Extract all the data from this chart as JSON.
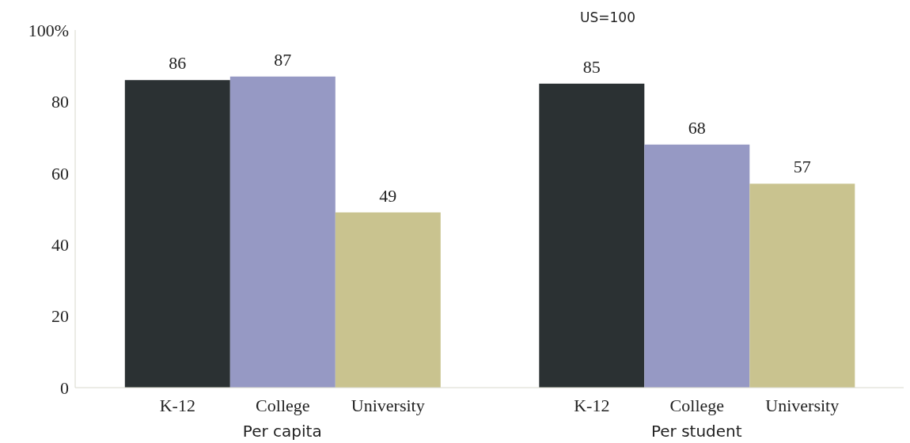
{
  "chart_data": {
    "type": "bar",
    "title": "US=100",
    "categories": [
      "Per capita",
      "Per student"
    ],
    "series": [
      {
        "name": "K-12",
        "color": "#2b3133",
        "values": [
          86,
          85
        ]
      },
      {
        "name": "College",
        "color": "#9699c4",
        "values": [
          87,
          68
        ]
      },
      {
        "name": "University",
        "color": "#c9c38f",
        "values": [
          49,
          57
        ]
      }
    ],
    "ylim": [
      0,
      100
    ],
    "yticks": [
      0,
      20,
      40,
      60,
      {
        "value": 100,
        "label": "100%"
      },
      80
    ],
    "data_labels": true,
    "grid": false,
    "legend": false
  }
}
